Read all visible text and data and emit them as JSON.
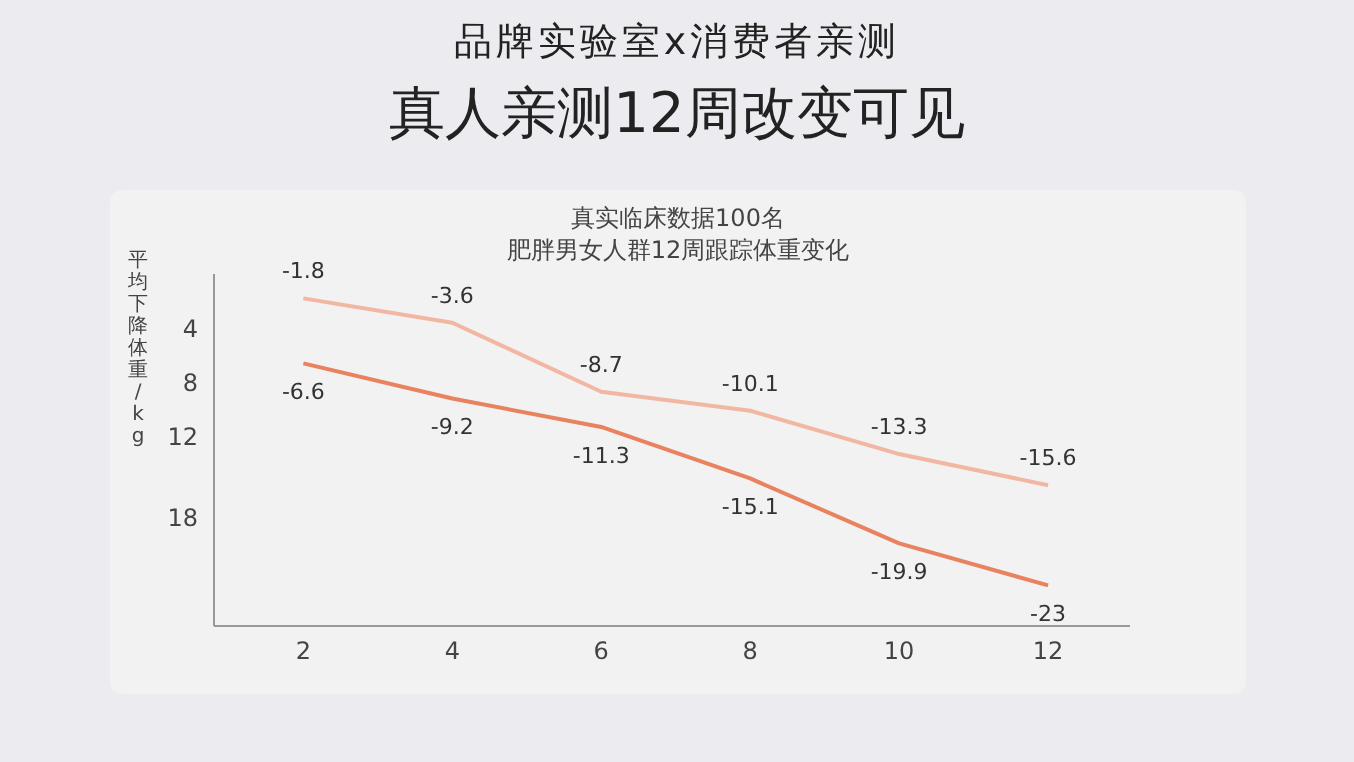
{
  "chart_data": {
    "type": "line",
    "title": "品牌实验室x消费者亲测",
    "subtitle": "真人亲测12周改变可见",
    "annotations": [
      "真实临床数据100名",
      "肥胖男女人群12周跟踪体重变化"
    ],
    "ylabel": "平均下降体重/kg",
    "x": [
      2,
      4,
      6,
      8,
      10,
      12
    ],
    "xlim": [
      0.8,
      13.1
    ],
    "xticks": [
      2,
      4,
      6,
      8,
      10,
      12
    ],
    "ylim": [
      -26,
      0
    ],
    "yticks": [
      {
        "value": -4,
        "label": "4"
      },
      {
        "value": -8,
        "label": "8"
      },
      {
        "value": -12,
        "label": "12"
      },
      {
        "value": -18,
        "label": "18"
      }
    ],
    "series": [
      {
        "color": "#f2b7a2",
        "values": [
          -1.8,
          -3.6,
          -8.7,
          -10.1,
          -13.3,
          -15.6
        ]
      },
      {
        "color": "#e8825f",
        "values": [
          -6.6,
          -9.2,
          -11.3,
          -15.1,
          -19.9,
          -23
        ]
      }
    ],
    "data_labels": true,
    "grid": false,
    "marker": "none",
    "line_style": "solid",
    "legend": false
  }
}
